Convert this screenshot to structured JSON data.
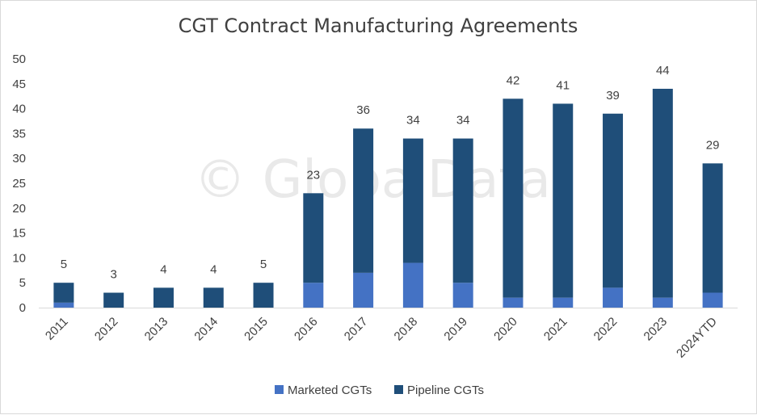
{
  "chart_data": {
    "type": "bar",
    "stacked": true,
    "title": "CGT Contract Manufacturing Agreements",
    "watermark": "© GlobalData",
    "categories": [
      "2011",
      "2012",
      "2013",
      "2014",
      "2015",
      "2016",
      "2017",
      "2018",
      "2019",
      "2020",
      "2021",
      "2022",
      "2023",
      "2024YTD"
    ],
    "series": [
      {
        "name": "Marketed CGTs",
        "color": "#4472c4",
        "values": [
          1,
          0,
          0,
          0,
          0,
          5,
          7,
          9,
          5,
          2,
          2,
          4,
          2,
          3
        ]
      },
      {
        "name": "Pipeline CGTs",
        "color": "#1f4e79",
        "values": [
          4,
          3,
          4,
          4,
          5,
          18,
          29,
          25,
          29,
          40,
          39,
          35,
          42,
          26
        ]
      }
    ],
    "totals": [
      5,
      3,
      4,
      4,
      5,
      23,
      36,
      34,
      34,
      42,
      41,
      39,
      44,
      29
    ],
    "ylim": [
      0,
      50
    ],
    "yticks": [
      0,
      5,
      10,
      15,
      20,
      25,
      30,
      35,
      40,
      45,
      50
    ],
    "grid": false,
    "legend": "bottom-center"
  }
}
